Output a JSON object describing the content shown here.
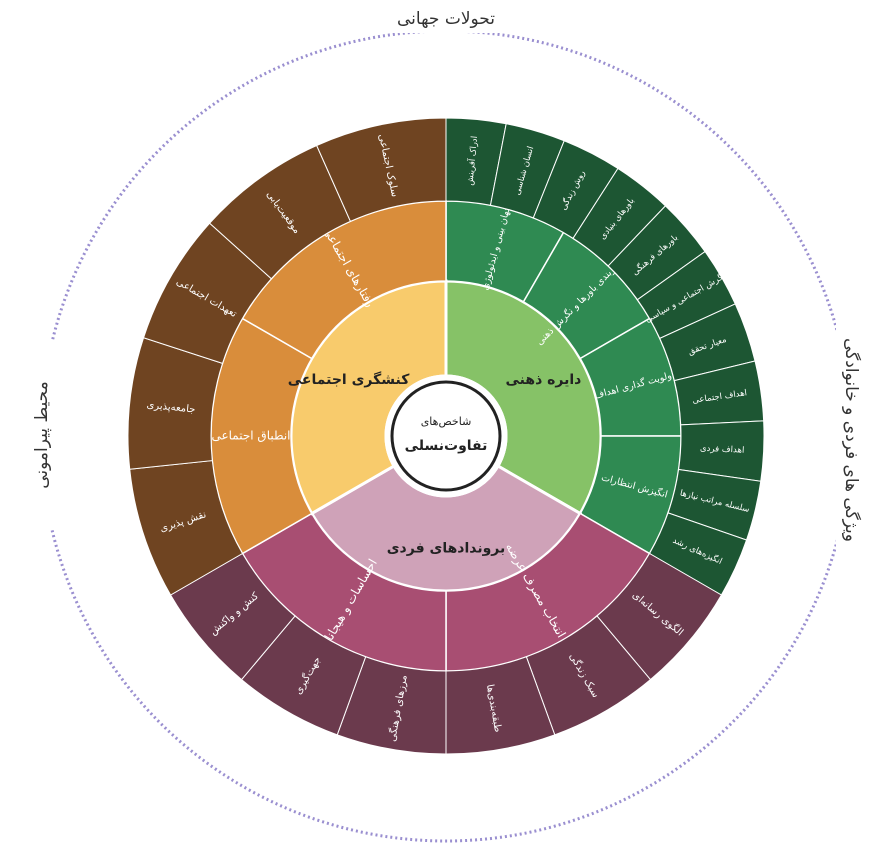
{
  "center": {
    "line1": "شاخص‌های",
    "line2": "تفاوت‌نسلی"
  },
  "surroundings": {
    "top": "تحولات جهانی",
    "right": "ویژگی های فردی و خانوادگی",
    "left": "محیط پیرامونی"
  },
  "sectors": [
    {
      "label": "دایره ذهنی",
      "middle": [
        "جهان بینی و ایدئولوژی",
        "ساختاربندی باورها و نگرش ذهنی",
        "اولویت گذاری اهداف",
        "انگیزش انتظارات"
      ],
      "outer": [
        "ادراک آفرینش",
        "انسان شناسی",
        "روش زندگی",
        "باورهای بنیادی",
        "باورهای فرهنگی",
        "نگرش اجتماعی و سیاسی",
        "معیار تحقق",
        "اهداف اجتماعی",
        "اهداف فردی",
        "سلسله مراتب نیازها",
        "انگیزه‌های رشد"
      ]
    },
    {
      "label": "برونداد‌های فردی",
      "middle": [
        "الگوی انتخاب مصرف عرضه",
        "احساسات و هیجانات"
      ],
      "outer": [
        "الگوی رسانه‌ای",
        "سبک زندگی",
        "طبقه‌بندی‌ها",
        "مرزهای فرهنگی",
        "جهت‌گیری",
        "کنش و واکنش"
      ]
    },
    {
      "label": "کنشگری اجتماعی",
      "middle": [
        "انطباق اجتماعی",
        "رفتارهای اجتماعی"
      ],
      "outer": [
        "نقش پذیری",
        "جامعه‌پذیری",
        "تعهدات اجتماعی",
        "موقعیت‌یابی",
        "سلوک اجتماعی"
      ]
    }
  ]
}
